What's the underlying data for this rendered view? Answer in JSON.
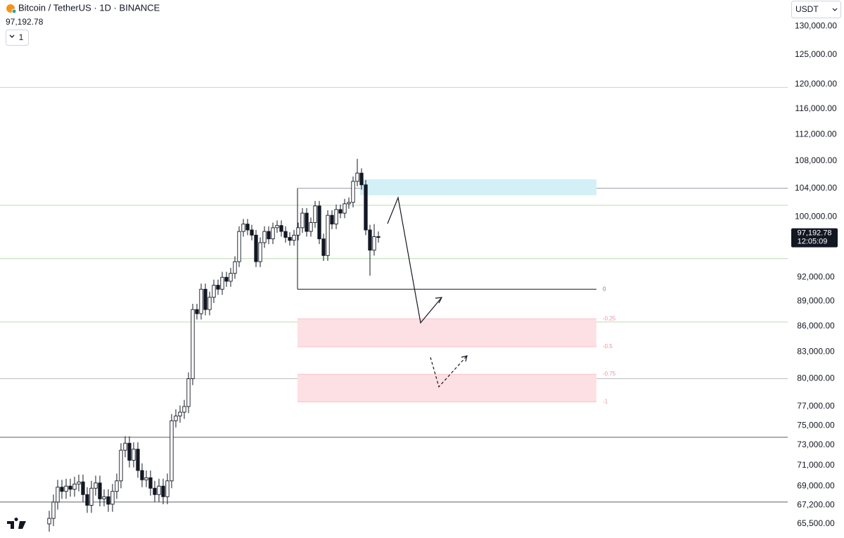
{
  "header": {
    "title": "Bitcoin / TetherUS · 1D · BINANCE",
    "price_label": "97,192.78",
    "interval_count": "1",
    "currency": "USDT",
    "countdown": "12:05:09"
  },
  "chart_data": {
    "type": "candlestick",
    "log_scale": true,
    "up_color": "#ffffff",
    "down_color": "#131722",
    "open": [
      65500,
      66000,
      67500,
      68900,
      68500,
      69000,
      68700,
      69200,
      69400,
      68200,
      67200,
      68800,
      69300,
      67800,
      68000,
      67300,
      68500,
      69500,
      72500,
      73200,
      71500,
      72600,
      70500,
      69600,
      69800,
      68800,
      68200,
      69000,
      68000,
      69500,
      75500,
      76000,
      76400,
      77000,
      80000,
      88000,
      87500,
      90500,
      88000,
      89500,
      91000,
      90500,
      92000,
      91500,
      92500,
      94000,
      98000,
      99000,
      98200,
      97500,
      94000,
      96500,
      98000,
      97000,
      98500,
      98800,
      98000,
      97200,
      96800,
      97500,
      98500,
      100500,
      98000,
      99200,
      101500,
      97000,
      94800,
      100200,
      99000,
      101000,
      100500,
      101800,
      102000,
      105000,
      106200,
      104500,
      98200,
      95500,
      97300
    ],
    "high": [
      66700,
      68200,
      69600,
      69600,
      69700,
      69700,
      69900,
      70100,
      70100,
      68900,
      69500,
      70000,
      70000,
      68700,
      68700,
      69200,
      70200,
      73200,
      73900,
      73900,
      73300,
      73300,
      71200,
      70500,
      70500,
      69500,
      69700,
      69700,
      70200,
      76200,
      76700,
      77100,
      77700,
      80700,
      88700,
      88700,
      91200,
      91200,
      90200,
      91700,
      91700,
      92700,
      92700,
      93200,
      94700,
      98700,
      99700,
      99700,
      98900,
      98200,
      97200,
      98700,
      98700,
      99200,
      99500,
      99500,
      98700,
      97900,
      98200,
      99200,
      101200,
      101200,
      99900,
      102200,
      102200,
      97700,
      100900,
      100900,
      101700,
      101700,
      102500,
      102700,
      105700,
      108300,
      106900,
      105200,
      98900,
      99000,
      98000
    ],
    "low": [
      64800,
      65300,
      66800,
      67800,
      67800,
      68000,
      68000,
      68500,
      67500,
      66500,
      66500,
      68100,
      67100,
      67100,
      66600,
      66600,
      67800,
      68800,
      71800,
      70800,
      70800,
      69800,
      68900,
      68900,
      68100,
      67500,
      67500,
      67300,
      67300,
      68800,
      74800,
      75300,
      75700,
      76300,
      79300,
      86800,
      86800,
      87300,
      87300,
      88800,
      89800,
      89800,
      90800,
      90800,
      91800,
      93300,
      97300,
      97500,
      96800,
      93300,
      93300,
      95800,
      96300,
      96300,
      97800,
      97300,
      96500,
      96100,
      96100,
      96800,
      97800,
      97300,
      97300,
      98500,
      96300,
      94100,
      94100,
      98300,
      98300,
      99800,
      99800,
      101100,
      101300,
      104300,
      103800,
      97500,
      92200,
      94800,
      96500
    ],
    "close": [
      66000,
      67500,
      68900,
      68500,
      69000,
      68700,
      69200,
      69400,
      68200,
      67200,
      68800,
      69300,
      67800,
      68000,
      67300,
      68500,
      69500,
      72500,
      73200,
      71500,
      72600,
      70500,
      69600,
      69800,
      68800,
      68200,
      69000,
      68000,
      69500,
      75500,
      76000,
      76400,
      77000,
      80000,
      88000,
      87500,
      90500,
      88000,
      89500,
      91000,
      90500,
      92000,
      91500,
      92500,
      94000,
      98000,
      99000,
      98200,
      97500,
      94000,
      96500,
      98000,
      97000,
      98500,
      98800,
      98000,
      97200,
      96800,
      97500,
      98500,
      100500,
      98000,
      99200,
      101500,
      97000,
      94800,
      100200,
      99000,
      101000,
      100500,
      101800,
      102000,
      105000,
      106200,
      104500,
      98200,
      95500,
      97300,
      97192.78
    ],
    "last_price": 97192.78,
    "ylim": [
      64240,
      134800
    ],
    "yticks": [
      {
        "value": 130000,
        "label": "130,000.00"
      },
      {
        "value": 125000,
        "label": "125,000.00"
      },
      {
        "value": 120000,
        "label": "120,000.00"
      },
      {
        "value": 116000,
        "label": "116,000.00"
      },
      {
        "value": 112000,
        "label": "112,000.00"
      },
      {
        "value": 108000,
        "label": "108,000.00"
      },
      {
        "value": 104000,
        "label": "104,000.00"
      },
      {
        "value": 100000,
        "label": "100,000.00"
      },
      {
        "value": 92000,
        "label": "92,000.00"
      },
      {
        "value": 89000,
        "label": "89,000.00"
      },
      {
        "value": 86000,
        "label": "86,000.00"
      },
      {
        "value": 83000,
        "label": "83,000.00"
      },
      {
        "value": 80000,
        "label": "80,000.00"
      },
      {
        "value": 77000,
        "label": "77,000.00"
      },
      {
        "value": 75000,
        "label": "75,000.00"
      },
      {
        "value": 73000,
        "label": "73,000.00"
      },
      {
        "value": 71000,
        "label": "71,000.00"
      },
      {
        "value": 69000,
        "label": "69,000.00"
      },
      {
        "value": 67200,
        "label": "67,200.00"
      },
      {
        "value": 65500,
        "label": "65,500.00"
      }
    ],
    "levels": [
      {
        "value": 119500,
        "color": "#b9dcd9"
      },
      {
        "value": 101600,
        "color": "#b7dcb0"
      },
      {
        "value": 94400,
        "color": "#b7dcb0"
      },
      {
        "value": 86500,
        "color": "#b7dcb0"
      },
      {
        "value": 80000,
        "color": "#bdbdbd"
      },
      {
        "value": 73800,
        "color": "#5d606b"
      },
      {
        "value": 67500,
        "color": "#5d606b"
      }
    ],
    "supply_zone": {
      "low": 103000,
      "high": 105300,
      "color": "#d3f0f7"
    },
    "fib": {
      "anchor_high": 104000,
      "ratios": [
        0,
        -0.25,
        -0.5,
        -0.75,
        -1
      ],
      "prices": [
        90500,
        86900,
        83600,
        80500,
        77500
      ],
      "zone_color": "#fde0e3",
      "label_color": "#f0909c"
    }
  }
}
